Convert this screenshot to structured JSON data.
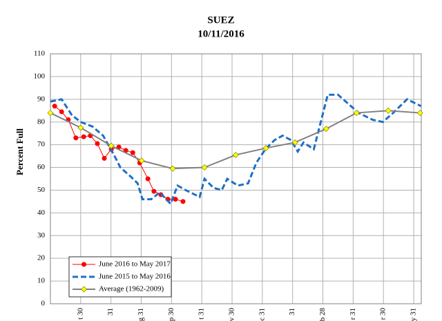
{
  "chart_data": {
    "type": "line",
    "title": "SUEZ",
    "subtitle": "10/11/2016",
    "y_label": "Percent Full",
    "xlim": [
      0,
      12.25
    ],
    "xticks": [
      {
        "value": 1,
        "label": "t 30"
      },
      {
        "value": 2,
        "label": "31"
      },
      {
        "value": 3,
        "label": "g 31"
      },
      {
        "value": 4,
        "label": "p 30"
      },
      {
        "value": 5,
        "label": "t 31"
      },
      {
        "value": 6,
        "label": "v 30"
      },
      {
        "value": 7,
        "label": "c 31"
      },
      {
        "value": 8,
        "label": "31"
      },
      {
        "value": 9,
        "label": "b 28"
      },
      {
        "value": 10,
        "label": "r 31"
      },
      {
        "value": 11,
        "label": "r 30"
      },
      {
        "value": 12,
        "label": "y 31"
      }
    ],
    "ylim": [
      0,
      110
    ],
    "yticks": [
      0,
      10,
      20,
      30,
      40,
      50,
      60,
      70,
      80,
      90,
      100,
      110
    ],
    "grid": true,
    "legend": "lower left",
    "series": [
      {
        "name": "June 2016 to May 2017",
        "color": "#ff0000",
        "style": "solid-marker",
        "x": [
          0.14,
          0.37,
          0.59,
          0.84,
          1.1,
          1.32,
          1.55,
          1.78,
          2.01,
          2.26,
          2.49,
          2.72,
          2.95,
          3.22,
          3.42,
          3.65,
          3.88,
          4.13,
          4.38
        ],
        "values": [
          87,
          84.5,
          81,
          73,
          73.5,
          74,
          70.5,
          64,
          68,
          69,
          67.5,
          66.5,
          62,
          55,
          49.5,
          48,
          46,
          46,
          45
        ]
      },
      {
        "name": "June 2015 to May 2016",
        "color": "#1f6fc5",
        "style": "dashed",
        "x": [
          0,
          0.37,
          0.71,
          1,
          1.39,
          1.74,
          2.08,
          2.31,
          2.65,
          2.88,
          3.04,
          3.33,
          3.61,
          3.97,
          4.2,
          4.47,
          4.93,
          5.09,
          5.39,
          5.66,
          5.84,
          6.19,
          6.53,
          6.8,
          7.1,
          7.4,
          7.67,
          7.95,
          8.17,
          8.36,
          8.7,
          8.93,
          9.16,
          9.5,
          9.84,
          10.18,
          10.64,
          10.98,
          11.32,
          11.78,
          12.24
        ],
        "values": [
          89,
          90,
          83,
          80,
          78,
          74,
          66,
          60,
          56,
          53,
          46,
          46,
          49,
          44,
          52,
          50,
          47,
          55,
          51,
          50,
          55,
          52,
          53,
          62,
          68,
          72,
          74,
          72,
          67,
          71,
          68,
          80,
          92,
          92,
          88,
          84,
          81,
          80,
          84,
          90,
          87
        ]
      },
      {
        "name": "Average (1962-2009)",
        "color": "#808080",
        "marker_color": "#ffff00",
        "style": "solid-diamond",
        "x": [
          0,
          1,
          2.01,
          3.01,
          4.04,
          5.09,
          6.12,
          7.12,
          8.08,
          9.11,
          10.11,
          11.16,
          12.21
        ],
        "values": [
          84,
          77.5,
          69.5,
          63,
          59.5,
          60,
          65.5,
          68.5,
          71,
          77,
          84,
          85,
          84
        ]
      }
    ]
  }
}
